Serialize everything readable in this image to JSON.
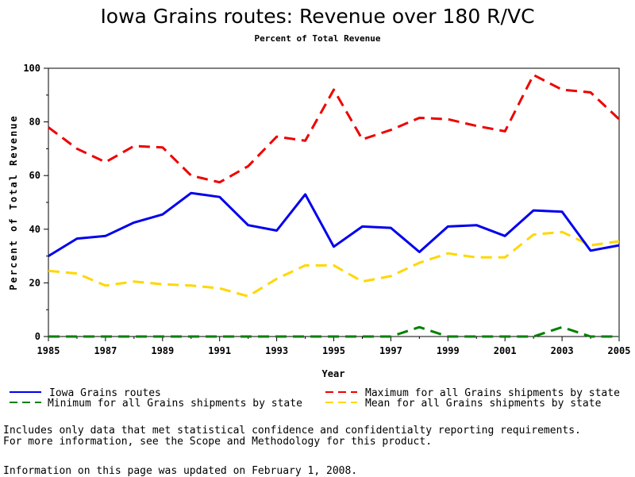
{
  "chart_data": {
    "type": "line",
    "title": "Iowa Grains routes: Revenue over 180 R/VC",
    "subtitle": "Percent of Total Revenue",
    "xlabel": "Year",
    "ylabel": "Percent of Total Revenue",
    "xlim": [
      1985,
      2005
    ],
    "ylim": [
      0,
      100
    ],
    "x_ticks": [
      "1985",
      "1987",
      "1989",
      "1991",
      "1993",
      "1995",
      "1997",
      "1999",
      "2001",
      "2003",
      "2005"
    ],
    "y_ticks": [
      "0",
      "20",
      "40",
      "60",
      "80",
      "100"
    ],
    "x": [
      1985,
      1986,
      1987,
      1988,
      1989,
      1990,
      1991,
      1992,
      1993,
      1994,
      1995,
      1996,
      1997,
      1998,
      1999,
      2000,
      2001,
      2002,
      2003,
      2004,
      2005
    ],
    "series": [
      {
        "name": "Iowa Grains routes",
        "color": "#0000ee",
        "style": "solid",
        "values": [
          30,
          36.5,
          37.5,
          42.5,
          45.5,
          53.5,
          52,
          41.5,
          39.5,
          53,
          33.5,
          41,
          40.5,
          31.5,
          41,
          41.5,
          37.5,
          47,
          46.5,
          32,
          34
        ]
      },
      {
        "name": "Minimum for all Grains shipments by state",
        "color": "#008000",
        "style": "dashed",
        "values": [
          0,
          0,
          0,
          0,
          0,
          0,
          0,
          0,
          0,
          0,
          0,
          0,
          0,
          3.5,
          0,
          0,
          0,
          0,
          3.5,
          0,
          0
        ]
      },
      {
        "name": "Maximum for all Grains shipments by state",
        "color": "#ee0000",
        "style": "dashed",
        "values": [
          78,
          70,
          65,
          71,
          70.5,
          60,
          57.5,
          63.5,
          74.5,
          73,
          92,
          73.5,
          77,
          81.5,
          81,
          78.5,
          76.5,
          97.5,
          92,
          91,
          81
        ]
      },
      {
        "name": "Mean for all Grains shipments by state",
        "color": "#ffd700",
        "style": "dashed",
        "values": [
          24.5,
          23.5,
          19,
          20.5,
          19.5,
          19,
          18,
          15,
          21.5,
          26.5,
          26.5,
          20.5,
          22.5,
          27.5,
          31,
          29.5,
          29.5,
          38,
          39,
          34,
          35.5
        ]
      }
    ]
  },
  "notes": {
    "line1": "Includes only data that met statistical confidence and confidentialty reporting requirements.",
    "line2": "For more information, see the Scope and Methodology for this product.",
    "line3": "Information on this page was updated on February 1, 2008."
  }
}
